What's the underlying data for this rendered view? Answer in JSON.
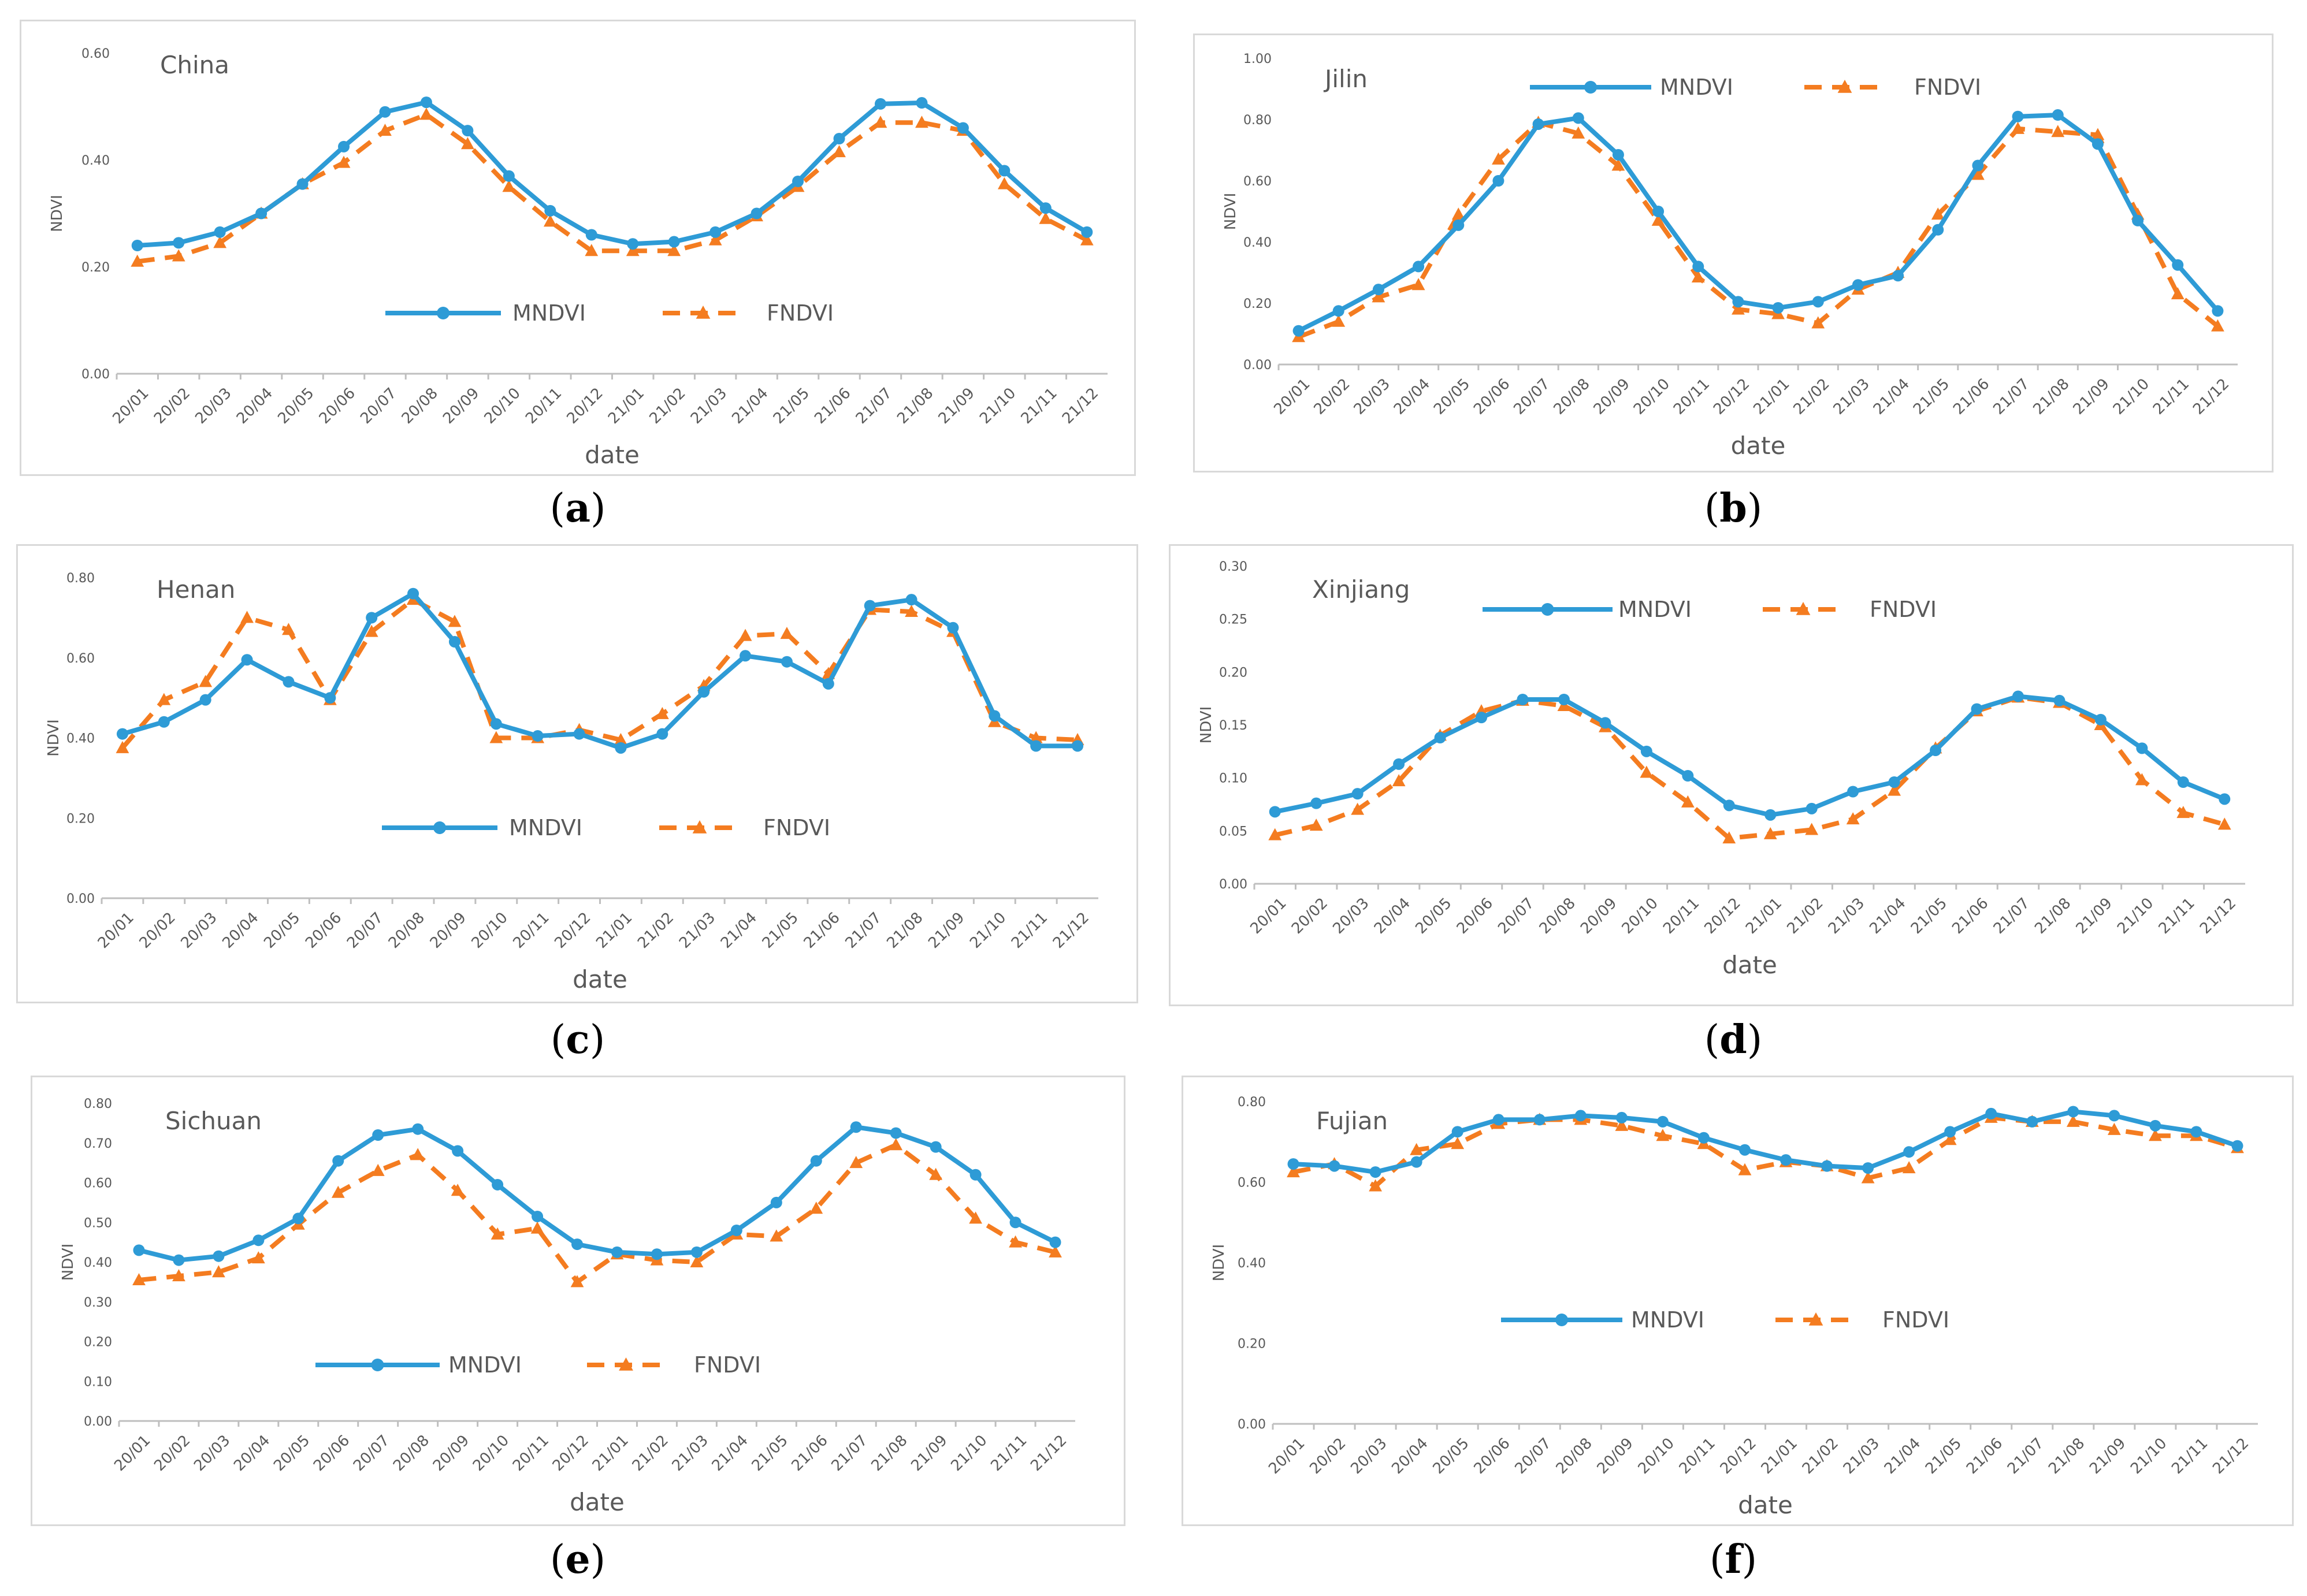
{
  "colors": {
    "mndvi": "#2e9bd6",
    "fndvi": "#f47c20"
  },
  "legend": {
    "mndvi": "MNDVI",
    "fndvi": "FNDVI"
  },
  "common": {
    "xlabel": "date",
    "ylabel": "NDVI",
    "categories": [
      "20/01",
      "20/02",
      "20/03",
      "20/04",
      "20/05",
      "20/06",
      "20/07",
      "20/08",
      "20/09",
      "20/10",
      "20/11",
      "20/12",
      "21/01",
      "21/02",
      "21/03",
      "21/04",
      "21/05",
      "21/06",
      "21/07",
      "21/08",
      "21/09",
      "21/10",
      "21/11",
      "21/12"
    ]
  },
  "chart_data": [
    {
      "type": "line",
      "title": "China",
      "caption": "a",
      "ylim": [
        0,
        0.6
      ],
      "yticks": [
        "0.00",
        "0.20",
        "0.40",
        "0.60"
      ],
      "series": [
        {
          "name": "MNDVI",
          "values": [
            0.24,
            0.245,
            0.265,
            0.3,
            0.355,
            0.425,
            0.49,
            0.508,
            0.455,
            0.37,
            0.305,
            0.26,
            0.243,
            0.247,
            0.265,
            0.3,
            0.36,
            0.44,
            0.505,
            0.507,
            0.46,
            0.38,
            0.31,
            0.265
          ]
        },
        {
          "name": "FNDVI",
          "values": [
            0.21,
            0.22,
            0.245,
            0.3,
            0.355,
            0.395,
            0.455,
            0.485,
            0.43,
            0.35,
            0.285,
            0.23,
            0.23,
            0.23,
            0.25,
            0.295,
            0.35,
            0.415,
            0.47,
            0.47,
            0.455,
            0.355,
            0.29,
            0.25
          ]
        }
      ]
    },
    {
      "type": "line",
      "title": "Jilin",
      "caption": "b",
      "ylim": [
        0,
        1
      ],
      "yticks": [
        "0.00",
        "0.20",
        "0.40",
        "0.60",
        "0.80",
        "1.00"
      ],
      "series": [
        {
          "name": "MNDVI",
          "values": [
            0.11,
            0.175,
            0.245,
            0.32,
            0.455,
            0.6,
            0.785,
            0.805,
            0.685,
            0.5,
            0.32,
            0.205,
            0.185,
            0.205,
            0.26,
            0.29,
            0.44,
            0.65,
            0.81,
            0.815,
            0.72,
            0.47,
            0.325,
            0.175
          ]
        },
        {
          "name": "FNDVI",
          "values": [
            0.09,
            0.14,
            0.22,
            0.26,
            0.49,
            0.67,
            0.79,
            0.755,
            0.65,
            0.47,
            0.285,
            0.18,
            0.165,
            0.135,
            0.245,
            0.3,
            0.49,
            0.62,
            0.77,
            0.76,
            0.75,
            0.49,
            0.23,
            0.125
          ]
        }
      ]
    },
    {
      "type": "line",
      "title": "Henan",
      "caption": "c",
      "ylim": [
        0,
        0.8
      ],
      "yticks": [
        "0.00",
        "0.20",
        "0.40",
        "0.60",
        "0.80"
      ],
      "series": [
        {
          "name": "MNDVI",
          "values": [
            0.41,
            0.44,
            0.495,
            0.595,
            0.54,
            0.5,
            0.7,
            0.76,
            0.64,
            0.435,
            0.405,
            0.41,
            0.375,
            0.41,
            0.515,
            0.605,
            0.59,
            0.535,
            0.73,
            0.745,
            0.675,
            0.455,
            0.38,
            0.38
          ]
        },
        {
          "name": "FNDVI",
          "values": [
            0.375,
            0.495,
            0.54,
            0.7,
            0.67,
            0.495,
            0.665,
            0.745,
            0.69,
            0.4,
            0.4,
            0.42,
            0.395,
            0.46,
            0.53,
            0.655,
            0.66,
            0.56,
            0.72,
            0.715,
            0.665,
            0.44,
            0.4,
            0.395
          ]
        }
      ]
    },
    {
      "type": "line",
      "title": "Xinjiang",
      "caption": "d",
      "ylim": [
        0,
        0.3
      ],
      "yticks": [
        "0.00",
        "0.05",
        "0.10",
        "0.15",
        "0.20",
        "0.25",
        "0.30"
      ],
      "series": [
        {
          "name": "MNDVI",
          "values": [
            0.068,
            0.076,
            0.085,
            0.113,
            0.138,
            0.157,
            0.174,
            0.174,
            0.152,
            0.125,
            0.102,
            0.074,
            0.065,
            0.071,
            0.087,
            0.096,
            0.126,
            0.165,
            0.177,
            0.173,
            0.155,
            0.128,
            0.096,
            0.08
          ]
        },
        {
          "name": "FNDVI",
          "values": [
            0.046,
            0.055,
            0.07,
            0.097,
            0.14,
            0.163,
            0.173,
            0.168,
            0.148,
            0.105,
            0.077,
            0.043,
            0.047,
            0.051,
            0.061,
            0.088,
            0.128,
            0.163,
            0.176,
            0.171,
            0.15,
            0.098,
            0.067,
            0.056
          ]
        }
      ]
    },
    {
      "type": "line",
      "title": "Sichuan",
      "caption": "e",
      "ylim": [
        0,
        0.8
      ],
      "yticks": [
        "0.00",
        "0.10",
        "0.20",
        "0.30",
        "0.40",
        "0.50",
        "0.60",
        "0.70",
        "0.80"
      ],
      "series": [
        {
          "name": "MNDVI",
          "values": [
            0.43,
            0.405,
            0.415,
            0.455,
            0.51,
            0.655,
            0.72,
            0.735,
            0.68,
            0.595,
            0.515,
            0.445,
            0.425,
            0.42,
            0.425,
            0.48,
            0.55,
            0.655,
            0.74,
            0.725,
            0.69,
            0.62,
            0.5,
            0.45
          ]
        },
        {
          "name": "FNDVI",
          "values": [
            0.355,
            0.365,
            0.375,
            0.41,
            0.495,
            0.575,
            0.63,
            0.67,
            0.58,
            0.47,
            0.485,
            0.35,
            0.42,
            0.405,
            0.4,
            0.47,
            0.465,
            0.535,
            0.65,
            0.695,
            0.62,
            0.51,
            0.45,
            0.425
          ]
        }
      ]
    },
    {
      "type": "line",
      "title": "Fujian",
      "caption": "f",
      "ylim": [
        0,
        0.8
      ],
      "yticks": [
        "0.00",
        "0.20",
        "0.40",
        "0.60",
        "0.80"
      ],
      "series": [
        {
          "name": "MNDVI",
          "values": [
            0.645,
            0.64,
            0.625,
            0.65,
            0.725,
            0.755,
            0.755,
            0.765,
            0.76,
            0.75,
            0.71,
            0.68,
            0.655,
            0.64,
            0.635,
            0.675,
            0.725,
            0.77,
            0.75,
            0.775,
            0.765,
            0.74,
            0.725,
            0.69
          ]
        },
        {
          "name": "FNDVI",
          "values": [
            0.625,
            0.645,
            0.59,
            0.68,
            0.695,
            0.745,
            0.755,
            0.755,
            0.74,
            0.715,
            0.695,
            0.63,
            0.65,
            0.64,
            0.61,
            0.635,
            0.705,
            0.76,
            0.75,
            0.75,
            0.73,
            0.715,
            0.715,
            0.685
          ]
        }
      ]
    }
  ]
}
